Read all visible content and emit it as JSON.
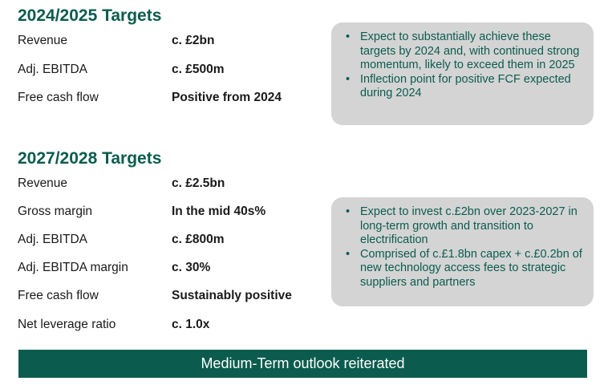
{
  "section1": {
    "title": "2024/2025 Targets",
    "rows": [
      {
        "label": "Revenue",
        "value": "c. £2bn"
      },
      {
        "label": "Adj. EBITDA",
        "value": "c. £500m"
      },
      {
        "label": "Free cash flow",
        "value": "Positive from 2024"
      }
    ],
    "callout": [
      "Expect to substantially achieve these targets by 2024 and, with continued strong momentum, likely to exceed them in 2025",
      "Inflection point for positive FCF expected during 2024"
    ]
  },
  "section2": {
    "title": "2027/2028 Targets",
    "rows": [
      {
        "label": "Revenue",
        "value": "c. £2.5bn"
      },
      {
        "label": "Gross margin",
        "value": "In the mid 40s%"
      },
      {
        "label": "Adj. EBITDA",
        "value": "c. £800m"
      },
      {
        "label": "Adj. EBITDA margin",
        "value": "c. 30%"
      },
      {
        "label": "Free cash flow",
        "value": "Sustainably positive"
      },
      {
        "label": "Net leverage ratio",
        "value": "c. 1.0x"
      }
    ],
    "callout": [
      "Expect to invest c.£2bn over 2023-2027 in long-term growth and transition to electrification",
      "Comprised of c.£1.8bn capex + c.£0.2bn of new technology access fees to strategic suppliers and partners"
    ]
  },
  "bullet_glyph": "•",
  "banner": {
    "text": "Medium-Term outlook reiterated"
  },
  "colors": {
    "accent": "#0b5c4e",
    "callout_bg": "#d4d4d4",
    "banner_text": "#ffffff"
  }
}
